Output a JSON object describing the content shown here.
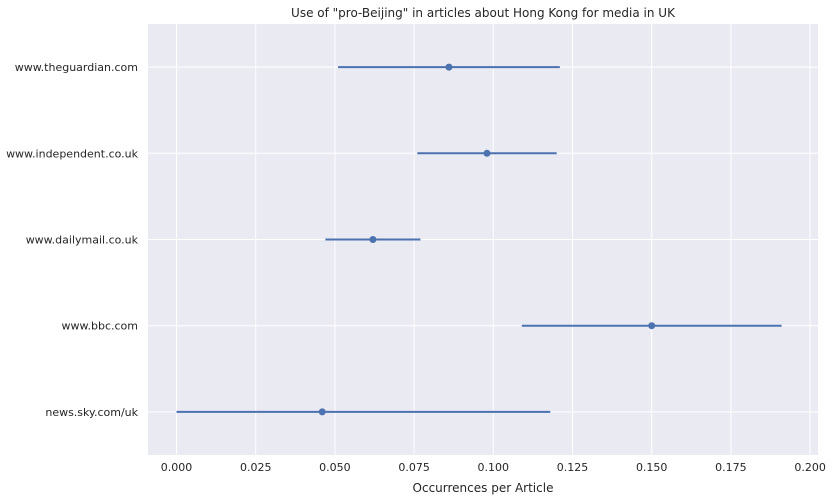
{
  "chart_data": {
    "type": "scatter",
    "title": "Use of \"pro-Beijing\" in articles about Hong Kong for media in UK",
    "xlabel": "Occurrences per Article",
    "ylabel": "",
    "xlim": [
      -0.009,
      0.2025
    ],
    "xticks": [
      0.0,
      0.025,
      0.05,
      0.075,
      0.1,
      0.125,
      0.15,
      0.175,
      0.2
    ],
    "xtick_labels": [
      "0.000",
      "0.025",
      "0.050",
      "0.075",
      "0.100",
      "0.125",
      "0.150",
      "0.175",
      "0.200"
    ],
    "grid": true,
    "categories": [
      "www.theguardian.com",
      "www.independent.co.uk",
      "www.dailymail.co.uk",
      "www.bbc.com",
      "news.sky.com/uk"
    ],
    "points": [
      {
        "category": "www.theguardian.com",
        "value": 0.086,
        "ci_low": 0.051,
        "ci_high": 0.121
      },
      {
        "category": "www.independent.co.uk",
        "value": 0.098,
        "ci_low": 0.076,
        "ci_high": 0.12
      },
      {
        "category": "www.dailymail.co.uk",
        "value": 0.062,
        "ci_low": 0.047,
        "ci_high": 0.077
      },
      {
        "category": "www.bbc.com",
        "value": 0.15,
        "ci_low": 0.109,
        "ci_high": 0.191
      },
      {
        "category": "news.sky.com/uk",
        "value": 0.046,
        "ci_low": 0.0,
        "ci_high": 0.118
      }
    ],
    "colors": {
      "background": "#eaeaf2",
      "grid": "#ffffff",
      "marker": "#4c72b0"
    }
  }
}
